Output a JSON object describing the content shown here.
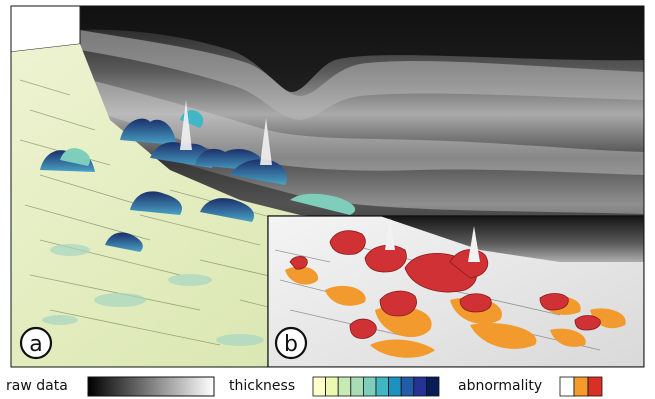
{
  "panels": [
    {
      "id": "a",
      "label": "a"
    },
    {
      "id": "b",
      "label": "b"
    }
  ],
  "legend": {
    "raw_data": {
      "label": "raw data",
      "gradient": [
        "#000000",
        "#ffffff"
      ]
    },
    "thickness": {
      "label": "thickness",
      "swatches": [
        "#ffffcc",
        "#edf8b1",
        "#c7e9b4",
        "#a8ddb5",
        "#7fcdbb",
        "#41b6c4",
        "#1d91c0",
        "#225ea8",
        "#253494",
        "#081d58"
      ]
    },
    "abnormality": {
      "label": "abnormality",
      "swatches": [
        "#ffffff",
        "#f59b2b",
        "#d73027"
      ]
    }
  },
  "colors": {
    "oct_dark": "#1a1a1a",
    "oct_band": "#8a8a8a",
    "surface_light": "#e6eec3",
    "bump_dark": "#243a77",
    "abnormal_orange": "#f29a2e",
    "abnormal_red": "#cf3134"
  }
}
